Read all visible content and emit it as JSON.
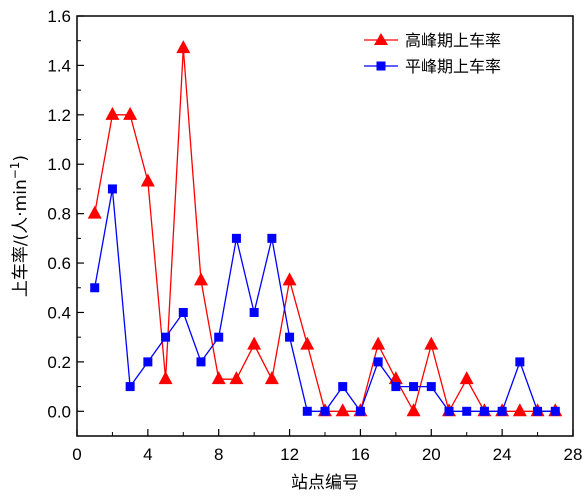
{
  "chart_data": {
    "type": "line",
    "xlabel": "站点编号",
    "ylabel": "上车率/(人·min⁻¹)",
    "ylabel_parts": {
      "main": "上车率/(人·min",
      "sup": "−1",
      "close": ")"
    },
    "xlim": [
      0,
      28
    ],
    "ylim": [
      -0.1,
      1.6
    ],
    "xticks": [
      0,
      4,
      8,
      12,
      16,
      20,
      24,
      28
    ],
    "yticks": [
      0.0,
      0.2,
      0.4,
      0.6,
      0.8,
      1.0,
      1.2,
      1.4,
      1.6
    ],
    "xtick_labels": [
      "0",
      "4",
      "8",
      "12",
      "16",
      "20",
      "24",
      "28"
    ],
    "ytick_labels": [
      "0.0",
      "0.2",
      "0.4",
      "0.6",
      "0.8",
      "1.0",
      "1.2",
      "1.4",
      "1.6"
    ],
    "legend_position": "top-right",
    "series": [
      {
        "name": "高峰期上车率",
        "color": "#ff0000",
        "marker": "triangle",
        "x": [
          1,
          2,
          3,
          4,
          5,
          6,
          7,
          8,
          9,
          10,
          11,
          12,
          13,
          14,
          15,
          16,
          17,
          18,
          19,
          20,
          21,
          22,
          23,
          24,
          25,
          26,
          27
        ],
        "y": [
          0.8,
          1.2,
          1.2,
          0.93,
          0.13,
          1.47,
          0.53,
          0.13,
          0.13,
          0.27,
          0.13,
          0.53,
          0.27,
          0.0,
          0.0,
          0.0,
          0.27,
          0.13,
          0.0,
          0.27,
          0.0,
          0.13,
          0.0,
          0.0,
          0.0,
          0.0,
          0.0
        ]
      },
      {
        "name": "平峰期上车率",
        "color": "#0000ff",
        "marker": "square",
        "x": [
          1,
          2,
          3,
          4,
          5,
          6,
          7,
          8,
          9,
          10,
          11,
          12,
          13,
          14,
          15,
          16,
          17,
          18,
          19,
          20,
          21,
          22,
          23,
          24,
          25,
          26,
          27
        ],
        "y": [
          0.5,
          0.9,
          0.1,
          0.2,
          0.3,
          0.4,
          0.2,
          0.3,
          0.7,
          0.4,
          0.7,
          0.3,
          0.0,
          0.0,
          0.1,
          0.0,
          0.2,
          0.1,
          0.1,
          0.1,
          0.0,
          0.0,
          0.0,
          0.0,
          0.2,
          0.0,
          0.0
        ]
      }
    ]
  }
}
